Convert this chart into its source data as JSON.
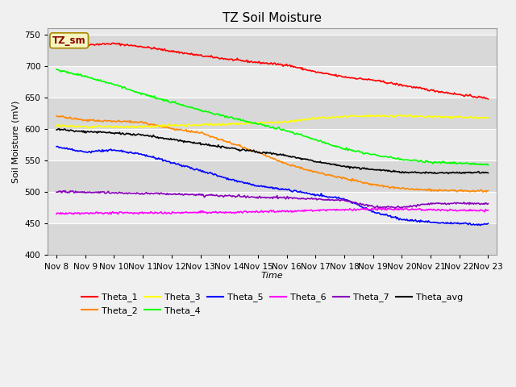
{
  "title": "TZ Soil Moisture",
  "xlabel": "Time",
  "ylabel": "Soil Moisture (mV)",
  "ylim": [
    400,
    760
  ],
  "yticks": [
    400,
    450,
    500,
    550,
    600,
    650,
    700,
    750
  ],
  "x_labels": [
    "Nov 8",
    "Nov 9",
    "Nov 10",
    "Nov 11",
    "Nov 12",
    "Nov 13",
    "Nov 14",
    "Nov 15",
    "Nov 16",
    "Nov 17",
    "Nov 18",
    "Nov 19",
    "Nov 20",
    "Nov 21",
    "Nov 22",
    "Nov 23"
  ],
  "legend_label": "TZ_sm",
  "series": {
    "Theta_1": {
      "color": "#ff0000",
      "points": [
        737,
        734,
        736,
        731,
        724,
        717,
        711,
        706,
        702,
        691,
        683,
        678,
        670,
        662,
        655,
        649
      ]
    },
    "Theta_2": {
      "color": "#ff8800",
      "points": [
        621,
        614,
        613,
        611,
        601,
        594,
        579,
        563,
        545,
        532,
        522,
        512,
        506,
        503,
        502,
        502
      ]
    },
    "Theta_3": {
      "color": "#ffff00",
      "points": [
        606,
        604,
        604,
        604,
        606,
        607,
        608,
        610,
        612,
        617,
        620,
        621,
        621,
        620,
        619,
        618
      ]
    },
    "Theta_4": {
      "color": "#00ff00",
      "points": [
        695,
        684,
        671,
        656,
        643,
        630,
        619,
        608,
        598,
        583,
        569,
        560,
        552,
        548,
        546,
        544
      ]
    },
    "Theta_5": {
      "color": "#0000ff",
      "points": [
        572,
        564,
        567,
        560,
        547,
        534,
        521,
        510,
        504,
        496,
        489,
        469,
        457,
        452,
        450,
        449
      ]
    },
    "Theta_6": {
      "color": "#ff00ff",
      "points": [
        466,
        467,
        467,
        467,
        467,
        468,
        468,
        469,
        470,
        471,
        472,
        473,
        473,
        472,
        471,
        471
      ]
    },
    "Theta_7": {
      "color": "#8800bb",
      "points": [
        501,
        500,
        499,
        498,
        497,
        496,
        494,
        492,
        491,
        489,
        487,
        477,
        476,
        482,
        482,
        482
      ]
    },
    "Theta_avg": {
      "color": "#000000",
      "points": [
        600,
        596,
        594,
        591,
        584,
        577,
        570,
        564,
        558,
        549,
        541,
        536,
        532,
        531,
        531,
        531
      ]
    }
  },
  "bg_color": "#f0f0f0",
  "plot_bg_color": "#e8e8e8",
  "grid_color": "#ffffff",
  "band_color_light": "#ebebeb",
  "band_color_dark": "#d8d8d8",
  "title_fontsize": 11,
  "axis_fontsize": 8,
  "tick_fontsize": 7.5
}
